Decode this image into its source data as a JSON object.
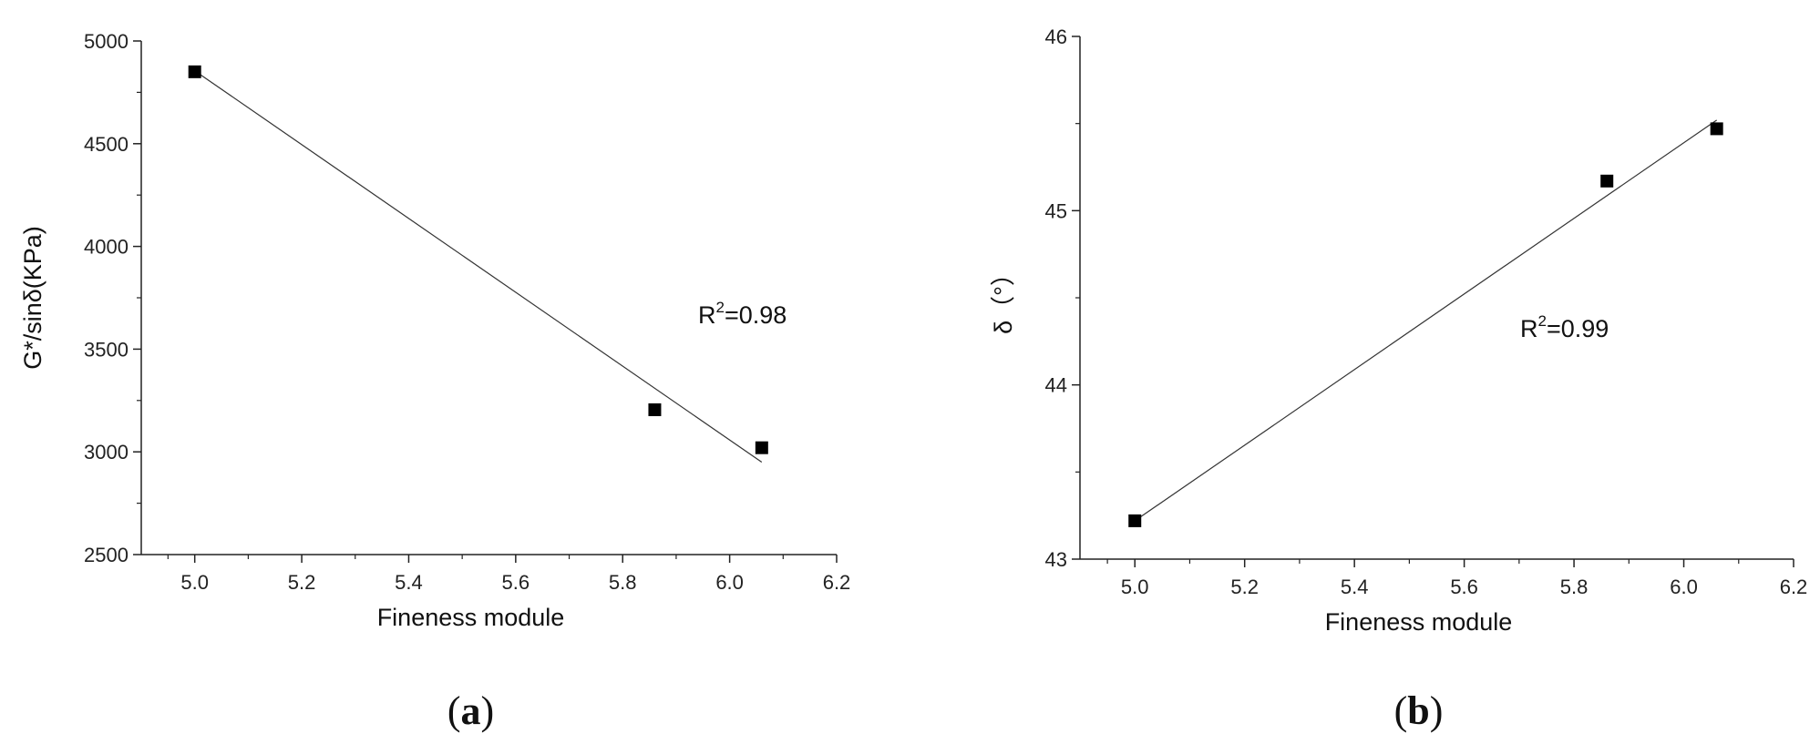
{
  "chart_data": [
    {
      "type": "scatter",
      "panel_label": "a",
      "xlabel": "Fineness module",
      "ylabel": "G*/sinδ(KPa)",
      "xlim": [
        4.9,
        6.2
      ],
      "ylim": [
        2500,
        5000
      ],
      "xticks": [
        5.0,
        5.2,
        5.4,
        5.6,
        5.8,
        6.0,
        6.2
      ],
      "yticks": [
        2500,
        3000,
        3500,
        4000,
        4500,
        5000
      ],
      "series": [
        {
          "x": [
            5.0,
            5.86,
            6.06
          ],
          "y": [
            4850,
            3205,
            3020
          ]
        }
      ],
      "fit_line": {
        "x": [
          5.0,
          6.06
        ],
        "y": [
          4855,
          2950
        ]
      },
      "annotation": {
        "base": "R",
        "sup": "2",
        "rest": "=0.98"
      },
      "grid": false,
      "legend": "none",
      "marker_color": "#000000"
    },
    {
      "type": "scatter",
      "panel_label": "b",
      "xlabel": "Fineness module",
      "ylabel": "δ（°）",
      "xlim": [
        4.9,
        6.2
      ],
      "ylim": [
        43,
        46
      ],
      "xticks": [
        5.0,
        5.2,
        5.4,
        5.6,
        5.8,
        6.0,
        6.2
      ],
      "yticks": [
        43,
        44,
        45,
        46
      ],
      "series": [
        {
          "x": [
            5.0,
            5.86,
            6.06
          ],
          "y": [
            43.22,
            45.17,
            45.47
          ]
        }
      ],
      "fit_line": {
        "x": [
          5.0,
          6.06
        ],
        "y": [
          43.22,
          45.52
        ]
      },
      "annotation": {
        "base": "R",
        "sup": "2",
        "rest": "=0.99"
      },
      "grid": false,
      "legend": "none",
      "marker_color": "#000000"
    }
  ],
  "captions": [
    {
      "label": "a"
    },
    {
      "label": "b"
    }
  ]
}
